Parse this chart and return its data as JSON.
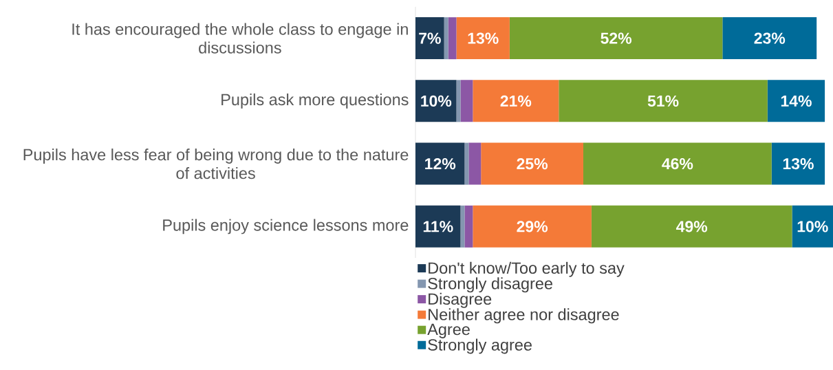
{
  "chart_data": {
    "type": "bar",
    "orientation": "horizontal",
    "stacked": true,
    "categories": [
      "It has encouraged the whole class to engage in discussions",
      "Pupils ask more questions",
      "Pupils have less fear of being wrong due to the nature of activities",
      "Pupils enjoy science lessons more"
    ],
    "tick_labels": "y",
    "legend": "bottom",
    "series": [
      {
        "name": "Don't know/Too early to say",
        "color": "#1c3a56",
        "values": [
          7,
          10,
          12,
          11
        ],
        "value_labels": [
          "7%",
          "10%",
          "12%",
          "11%"
        ]
      },
      {
        "name": "Strongly disagree",
        "color": "#8497b0",
        "values": [
          1,
          1,
          1,
          1
        ],
        "value_labels": [
          null,
          null,
          null,
          null
        ]
      },
      {
        "name": "Disagree",
        "color": "#8c57a5",
        "values": [
          2,
          3,
          3,
          2
        ],
        "value_labels": [
          null,
          null,
          null,
          null
        ]
      },
      {
        "name": "Neither agree nor disagree",
        "color": "#f47a38",
        "values": [
          13,
          21,
          25,
          29
        ],
        "value_labels": [
          "13%",
          "21%",
          "25%",
          "29%"
        ]
      },
      {
        "name": "Agree",
        "color": "#77a22f",
        "values": [
          52,
          51,
          46,
          49
        ],
        "value_labels": [
          "52%",
          "51%",
          "46%",
          "49%"
        ]
      },
      {
        "name": "Strongly agree",
        "color": "#006b99",
        "values": [
          23,
          14,
          13,
          10
        ],
        "value_labels": [
          "23%",
          "14%",
          "13%",
          "10%"
        ]
      }
    ]
  }
}
